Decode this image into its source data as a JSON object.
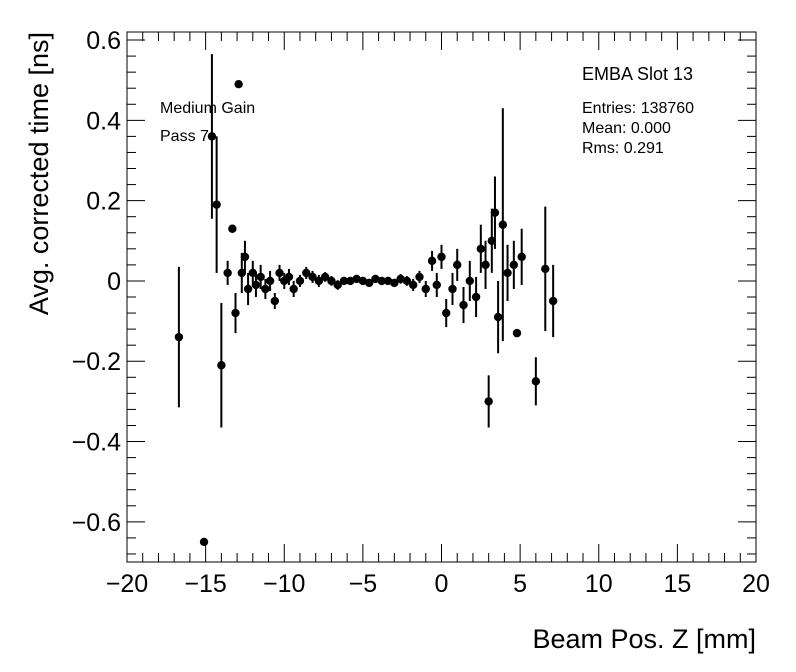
{
  "chart_data": {
    "type": "scatter",
    "title": "",
    "xlabel": "Beam Pos. Z [mm]",
    "ylabel": "Avg. corrected time [ns]",
    "xlim": [
      -20,
      20
    ],
    "ylim": [
      -0.7,
      0.62
    ],
    "x_ticks": [
      -20,
      -15,
      -10,
      -5,
      0,
      5,
      10,
      15,
      20
    ],
    "x_tick_labels": [
      "−20",
      "−15",
      "−10",
      "−5",
      "0",
      "5",
      "10",
      "15",
      "20"
    ],
    "y_ticks": [
      -0.6,
      -0.4,
      -0.2,
      0,
      0.2,
      0.4,
      0.6
    ],
    "y_tick_labels": [
      "−0.6",
      "−0.4",
      "−0.2",
      "0",
      "0.2",
      "0.4",
      "0.6"
    ],
    "grid": false,
    "annotations": [
      "Medium Gain",
      "Pass 7"
    ],
    "stats_box": {
      "title": "EMBA Slot 13",
      "entries": "Entries: 138760",
      "mean": "Mean: 0.000",
      "rms": "Rms: 0.291"
    },
    "series": [
      {
        "points": [
          {
            "x": -16.7,
            "y": -0.14,
            "err": 0.175
          },
          {
            "x": -15.1,
            "y": -0.65,
            "err": 0.0
          },
          {
            "x": -14.6,
            "y": 0.36,
            "err": 0.205
          },
          {
            "x": -14.3,
            "y": 0.19,
            "err": 0.17
          },
          {
            "x": -14.0,
            "y": -0.21,
            "err": 0.155
          },
          {
            "x": -13.6,
            "y": 0.02,
            "err": 0.03
          },
          {
            "x": -13.3,
            "y": 0.13,
            "err": 0.0
          },
          {
            "x": -13.1,
            "y": -0.08,
            "err": 0.05
          },
          {
            "x": -12.9,
            "y": 0.49,
            "err": 0.0
          },
          {
            "x": -12.7,
            "y": 0.02,
            "err": 0.05
          },
          {
            "x": -12.5,
            "y": 0.06,
            "err": 0.04
          },
          {
            "x": -12.3,
            "y": -0.02,
            "err": 0.04
          },
          {
            "x": -12.0,
            "y": 0.02,
            "err": 0.03
          },
          {
            "x": -11.8,
            "y": -0.01,
            "err": 0.03
          },
          {
            "x": -11.5,
            "y": 0.01,
            "err": 0.03
          },
          {
            "x": -11.2,
            "y": -0.02,
            "err": 0.025
          },
          {
            "x": -10.9,
            "y": 0.0,
            "err": 0.025
          },
          {
            "x": -10.6,
            "y": -0.05,
            "err": 0.02
          },
          {
            "x": -10.3,
            "y": 0.02,
            "err": 0.02
          },
          {
            "x": -10.0,
            "y": 0.0,
            "err": 0.02
          },
          {
            "x": -9.7,
            "y": 0.01,
            "err": 0.02
          },
          {
            "x": -9.4,
            "y": -0.02,
            "err": 0.02
          },
          {
            "x": -9.0,
            "y": 0.0,
            "err": 0.015
          },
          {
            "x": -8.6,
            "y": 0.02,
            "err": 0.015
          },
          {
            "x": -8.2,
            "y": 0.01,
            "err": 0.015
          },
          {
            "x": -7.8,
            "y": 0.0,
            "err": 0.015
          },
          {
            "x": -7.4,
            "y": 0.01,
            "err": 0.012
          },
          {
            "x": -7.0,
            "y": 0.0,
            "err": 0.012
          },
          {
            "x": -6.6,
            "y": -0.01,
            "err": 0.012
          },
          {
            "x": -6.2,
            "y": 0.0,
            "err": 0.01
          },
          {
            "x": -5.8,
            "y": 0.0,
            "err": 0.01
          },
          {
            "x": -5.4,
            "y": 0.005,
            "err": 0.01
          },
          {
            "x": -5.0,
            "y": 0.0,
            "err": 0.01
          },
          {
            "x": -4.6,
            "y": -0.005,
            "err": 0.01
          },
          {
            "x": -4.2,
            "y": 0.005,
            "err": 0.01
          },
          {
            "x": -3.8,
            "y": 0.0,
            "err": 0.01
          },
          {
            "x": -3.4,
            "y": 0.0,
            "err": 0.01
          },
          {
            "x": -3.0,
            "y": -0.005,
            "err": 0.01
          },
          {
            "x": -2.6,
            "y": 0.005,
            "err": 0.012
          },
          {
            "x": -2.2,
            "y": 0.0,
            "err": 0.012
          },
          {
            "x": -1.8,
            "y": -0.01,
            "err": 0.015
          },
          {
            "x": -1.4,
            "y": 0.01,
            "err": 0.015
          },
          {
            "x": -1.0,
            "y": -0.02,
            "err": 0.02
          },
          {
            "x": -0.6,
            "y": 0.05,
            "err": 0.025
          },
          {
            "x": -0.3,
            "y": -0.01,
            "err": 0.03
          },
          {
            "x": 0.0,
            "y": 0.06,
            "err": 0.03
          },
          {
            "x": 0.3,
            "y": -0.08,
            "err": 0.035
          },
          {
            "x": 0.7,
            "y": -0.02,
            "err": 0.04
          },
          {
            "x": 1.0,
            "y": 0.04,
            "err": 0.04
          },
          {
            "x": 1.4,
            "y": -0.06,
            "err": 0.045
          },
          {
            "x": 1.8,
            "y": 0.0,
            "err": 0.05
          },
          {
            "x": 2.2,
            "y": -0.04,
            "err": 0.05
          },
          {
            "x": 2.5,
            "y": 0.08,
            "err": 0.06
          },
          {
            "x": 2.8,
            "y": 0.04,
            "err": 0.06
          },
          {
            "x": 3.0,
            "y": -0.3,
            "err": 0.065
          },
          {
            "x": 3.2,
            "y": 0.1,
            "err": 0.08
          },
          {
            "x": 3.4,
            "y": 0.17,
            "err": 0.09
          },
          {
            "x": 3.6,
            "y": -0.09,
            "err": 0.09
          },
          {
            "x": 3.9,
            "y": 0.14,
            "err": 0.29
          },
          {
            "x": 4.2,
            "y": 0.02,
            "err": 0.07
          },
          {
            "x": 4.6,
            "y": 0.04,
            "err": 0.06
          },
          {
            "x": 4.8,
            "y": -0.13,
            "err": 0.0
          },
          {
            "x": 5.1,
            "y": 0.06,
            "err": 0.07
          },
          {
            "x": 6.0,
            "y": -0.25,
            "err": 0.06
          },
          {
            "x": 6.6,
            "y": 0.03,
            "err": 0.155
          },
          {
            "x": 7.1,
            "y": -0.05,
            "err": 0.09
          }
        ]
      }
    ]
  }
}
